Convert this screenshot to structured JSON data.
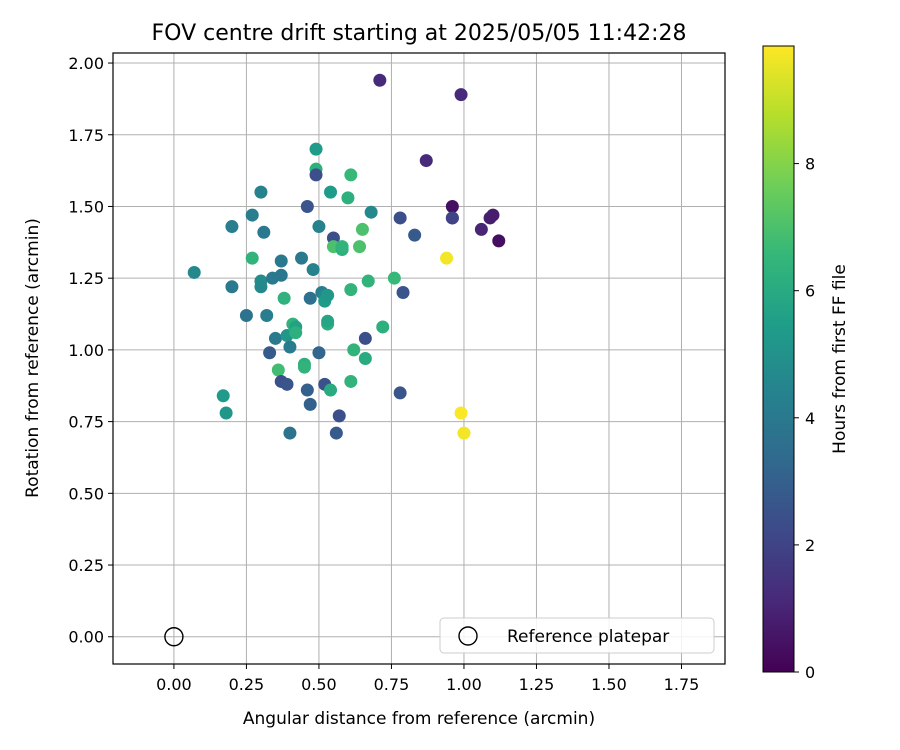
{
  "chart_data": {
    "type": "scatter",
    "title": "FOV centre drift starting at 2025/05/05 11:42:28",
    "xlabel": "Angular distance from reference (arcmin)",
    "ylabel": "Rotation from reference (arcmin)",
    "xlim": [
      -0.21,
      1.9
    ],
    "ylim": [
      -0.095,
      2.035
    ],
    "x_ticks": [
      0.0,
      0.25,
      0.5,
      0.75,
      1.0,
      1.25,
      1.5,
      1.75
    ],
    "x_tick_labels": [
      "0.00",
      "0.25",
      "0.50",
      "0.75",
      "1.00",
      "1.25",
      "1.50",
      "1.75"
    ],
    "y_ticks": [
      0.0,
      0.25,
      0.5,
      0.75,
      1.0,
      1.25,
      1.5,
      1.75,
      2.0
    ],
    "y_tick_labels": [
      "0.00",
      "0.25",
      "0.50",
      "0.75",
      "1.00",
      "1.25",
      "1.50",
      "1.75",
      "2.00"
    ],
    "grid": true,
    "legend": {
      "placement": "lower-right",
      "entries": [
        {
          "label": "Reference platepar",
          "marker": "open-circle",
          "x": 0.0,
          "y": 0.0
        }
      ]
    },
    "colorbar": {
      "label": "Hours from first FF file",
      "colormap": "viridis",
      "range": [
        0,
        9.85
      ],
      "ticks": [
        0,
        2,
        4,
        6,
        8
      ],
      "tick_labels": [
        "0",
        "2",
        "4",
        "6",
        "8"
      ]
    },
    "colormap_stops": [
      "#440154",
      "#482878",
      "#3e4989",
      "#31688e",
      "#26828e",
      "#1f9e89",
      "#35b779",
      "#6ece58",
      "#b5de2b",
      "#fde725"
    ],
    "series": [
      {
        "x": [
          0.07,
          0.17,
          0.18,
          0.2,
          0.2,
          0.25,
          0.27,
          0.27,
          0.3,
          0.3,
          0.3,
          0.31,
          0.32,
          0.33,
          0.34,
          0.35,
          0.36,
          0.37,
          0.37,
          0.37,
          0.38,
          0.39,
          0.39,
          0.4,
          0.4,
          0.41,
          0.42,
          0.42,
          0.44,
          0.45,
          0.45,
          0.46,
          0.46,
          0.47,
          0.47,
          0.48,
          0.49,
          0.49,
          0.49,
          0.5,
          0.5,
          0.51,
          0.52,
          0.52,
          0.52,
          0.53,
          0.53,
          0.53,
          0.54,
          0.54,
          0.55,
          0.55,
          0.56,
          0.57,
          0.58,
          0.58,
          0.6,
          0.61,
          0.61,
          0.61,
          0.62,
          0.64,
          0.65,
          0.66,
          0.66,
          0.67,
          0.68,
          0.71,
          0.72,
          0.76,
          0.78,
          0.78,
          0.79,
          0.83,
          0.87,
          0.94,
          0.96,
          0.96,
          0.96,
          0.99,
          0.99,
          1.0,
          1.06,
          1.09,
          1.1,
          1.12
        ],
        "y": [
          1.27,
          0.84,
          0.78,
          1.43,
          1.22,
          1.12,
          1.32,
          1.47,
          1.55,
          1.24,
          1.22,
          1.41,
          1.12,
          0.99,
          1.25,
          1.04,
          0.93,
          1.26,
          0.89,
          1.31,
          1.18,
          0.88,
          1.05,
          1.01,
          0.71,
          1.09,
          1.08,
          1.06,
          1.32,
          0.95,
          0.94,
          1.5,
          0.86,
          0.81,
          1.18,
          1.28,
          1.7,
          1.63,
          1.61,
          1.43,
          0.99,
          1.2,
          1.19,
          0.88,
          1.17,
          1.19,
          1.09,
          1.1,
          1.55,
          0.86,
          1.39,
          1.36,
          0.71,
          0.77,
          1.35,
          1.36,
          1.53,
          1.21,
          1.61,
          0.89,
          1.0,
          1.36,
          1.42,
          0.97,
          1.04,
          1.24,
          1.48,
          1.94,
          1.08,
          1.25,
          1.46,
          0.85,
          1.2,
          1.4,
          1.66,
          1.32,
          1.5,
          1.46,
          1.46,
          1.89,
          0.78,
          0.71,
          1.42,
          1.46,
          1.47,
          1.38
        ],
        "hours": [
          4.6,
          5.3,
          5.2,
          4.2,
          4.0,
          3.8,
          6.4,
          4.2,
          4.4,
          4.8,
          4.6,
          4.0,
          4.2,
          2.8,
          4.0,
          4.0,
          6.8,
          3.9,
          2.4,
          4.0,
          6.3,
          2.6,
          5.2,
          4.1,
          3.8,
          6.4,
          5.6,
          6.2,
          4.0,
          6.2,
          6.4,
          2.6,
          3.0,
          3.0,
          3.6,
          4.4,
          5.4,
          6.2,
          2.4,
          4.4,
          3.2,
          4.2,
          4.6,
          2.5,
          5.4,
          5.2,
          6.2,
          5.8,
          5.4,
          6.0,
          2.4,
          7.0,
          2.8,
          2.4,
          6.2,
          6.4,
          6.2,
          6.4,
          6.6,
          6.4,
          6.4,
          7.0,
          7.0,
          6.0,
          2.4,
          6.4,
          4.6,
          1.2,
          6.2,
          6.6,
          2.4,
          2.6,
          2.6,
          2.8,
          1.2,
          9.7,
          0.4,
          1.8,
          2.0,
          1.2,
          9.8,
          9.7,
          1.0,
          0.8,
          0.8,
          0.4
        ]
      }
    ]
  }
}
